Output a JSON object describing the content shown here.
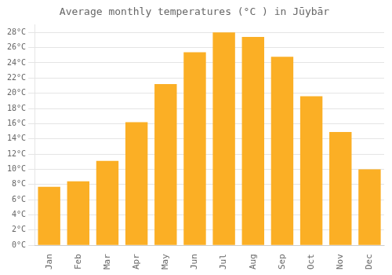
{
  "chart_data": {
    "type": "bar",
    "title": "Average monthly temperatures (°C ) in Jūybār",
    "categories": [
      "Jan",
      "Feb",
      "Mar",
      "Apr",
      "May",
      "Jun",
      "Jul",
      "Aug",
      "Sep",
      "Oct",
      "Nov",
      "Dec"
    ],
    "values": [
      7.7,
      8.4,
      11.1,
      16.2,
      21.2,
      25.4,
      28.0,
      27.4,
      24.8,
      19.6,
      14.9,
      10.0
    ],
    "color": "#FBAF25",
    "ylim": [
      0,
      29
    ],
    "yticks": [
      {
        "value": 0,
        "label": "0°C"
      },
      {
        "value": 2,
        "label": "2°C"
      },
      {
        "value": 4,
        "label": "4°C"
      },
      {
        "value": 6,
        "label": "6°C"
      },
      {
        "value": 8,
        "label": "8°C"
      },
      {
        "value": 10,
        "label": "10°C"
      },
      {
        "value": 12,
        "label": "12°C"
      },
      {
        "value": 14,
        "label": "14°C"
      },
      {
        "value": 16,
        "label": "16°C"
      },
      {
        "value": 18,
        "label": "18°C"
      },
      {
        "value": 20,
        "label": "20°C"
      },
      {
        "value": 22,
        "label": "22°C"
      },
      {
        "value": 24,
        "label": "24°C"
      },
      {
        "value": 26,
        "label": "26°C"
      },
      {
        "value": 28,
        "label": "28°C"
      }
    ],
    "grid": true
  }
}
